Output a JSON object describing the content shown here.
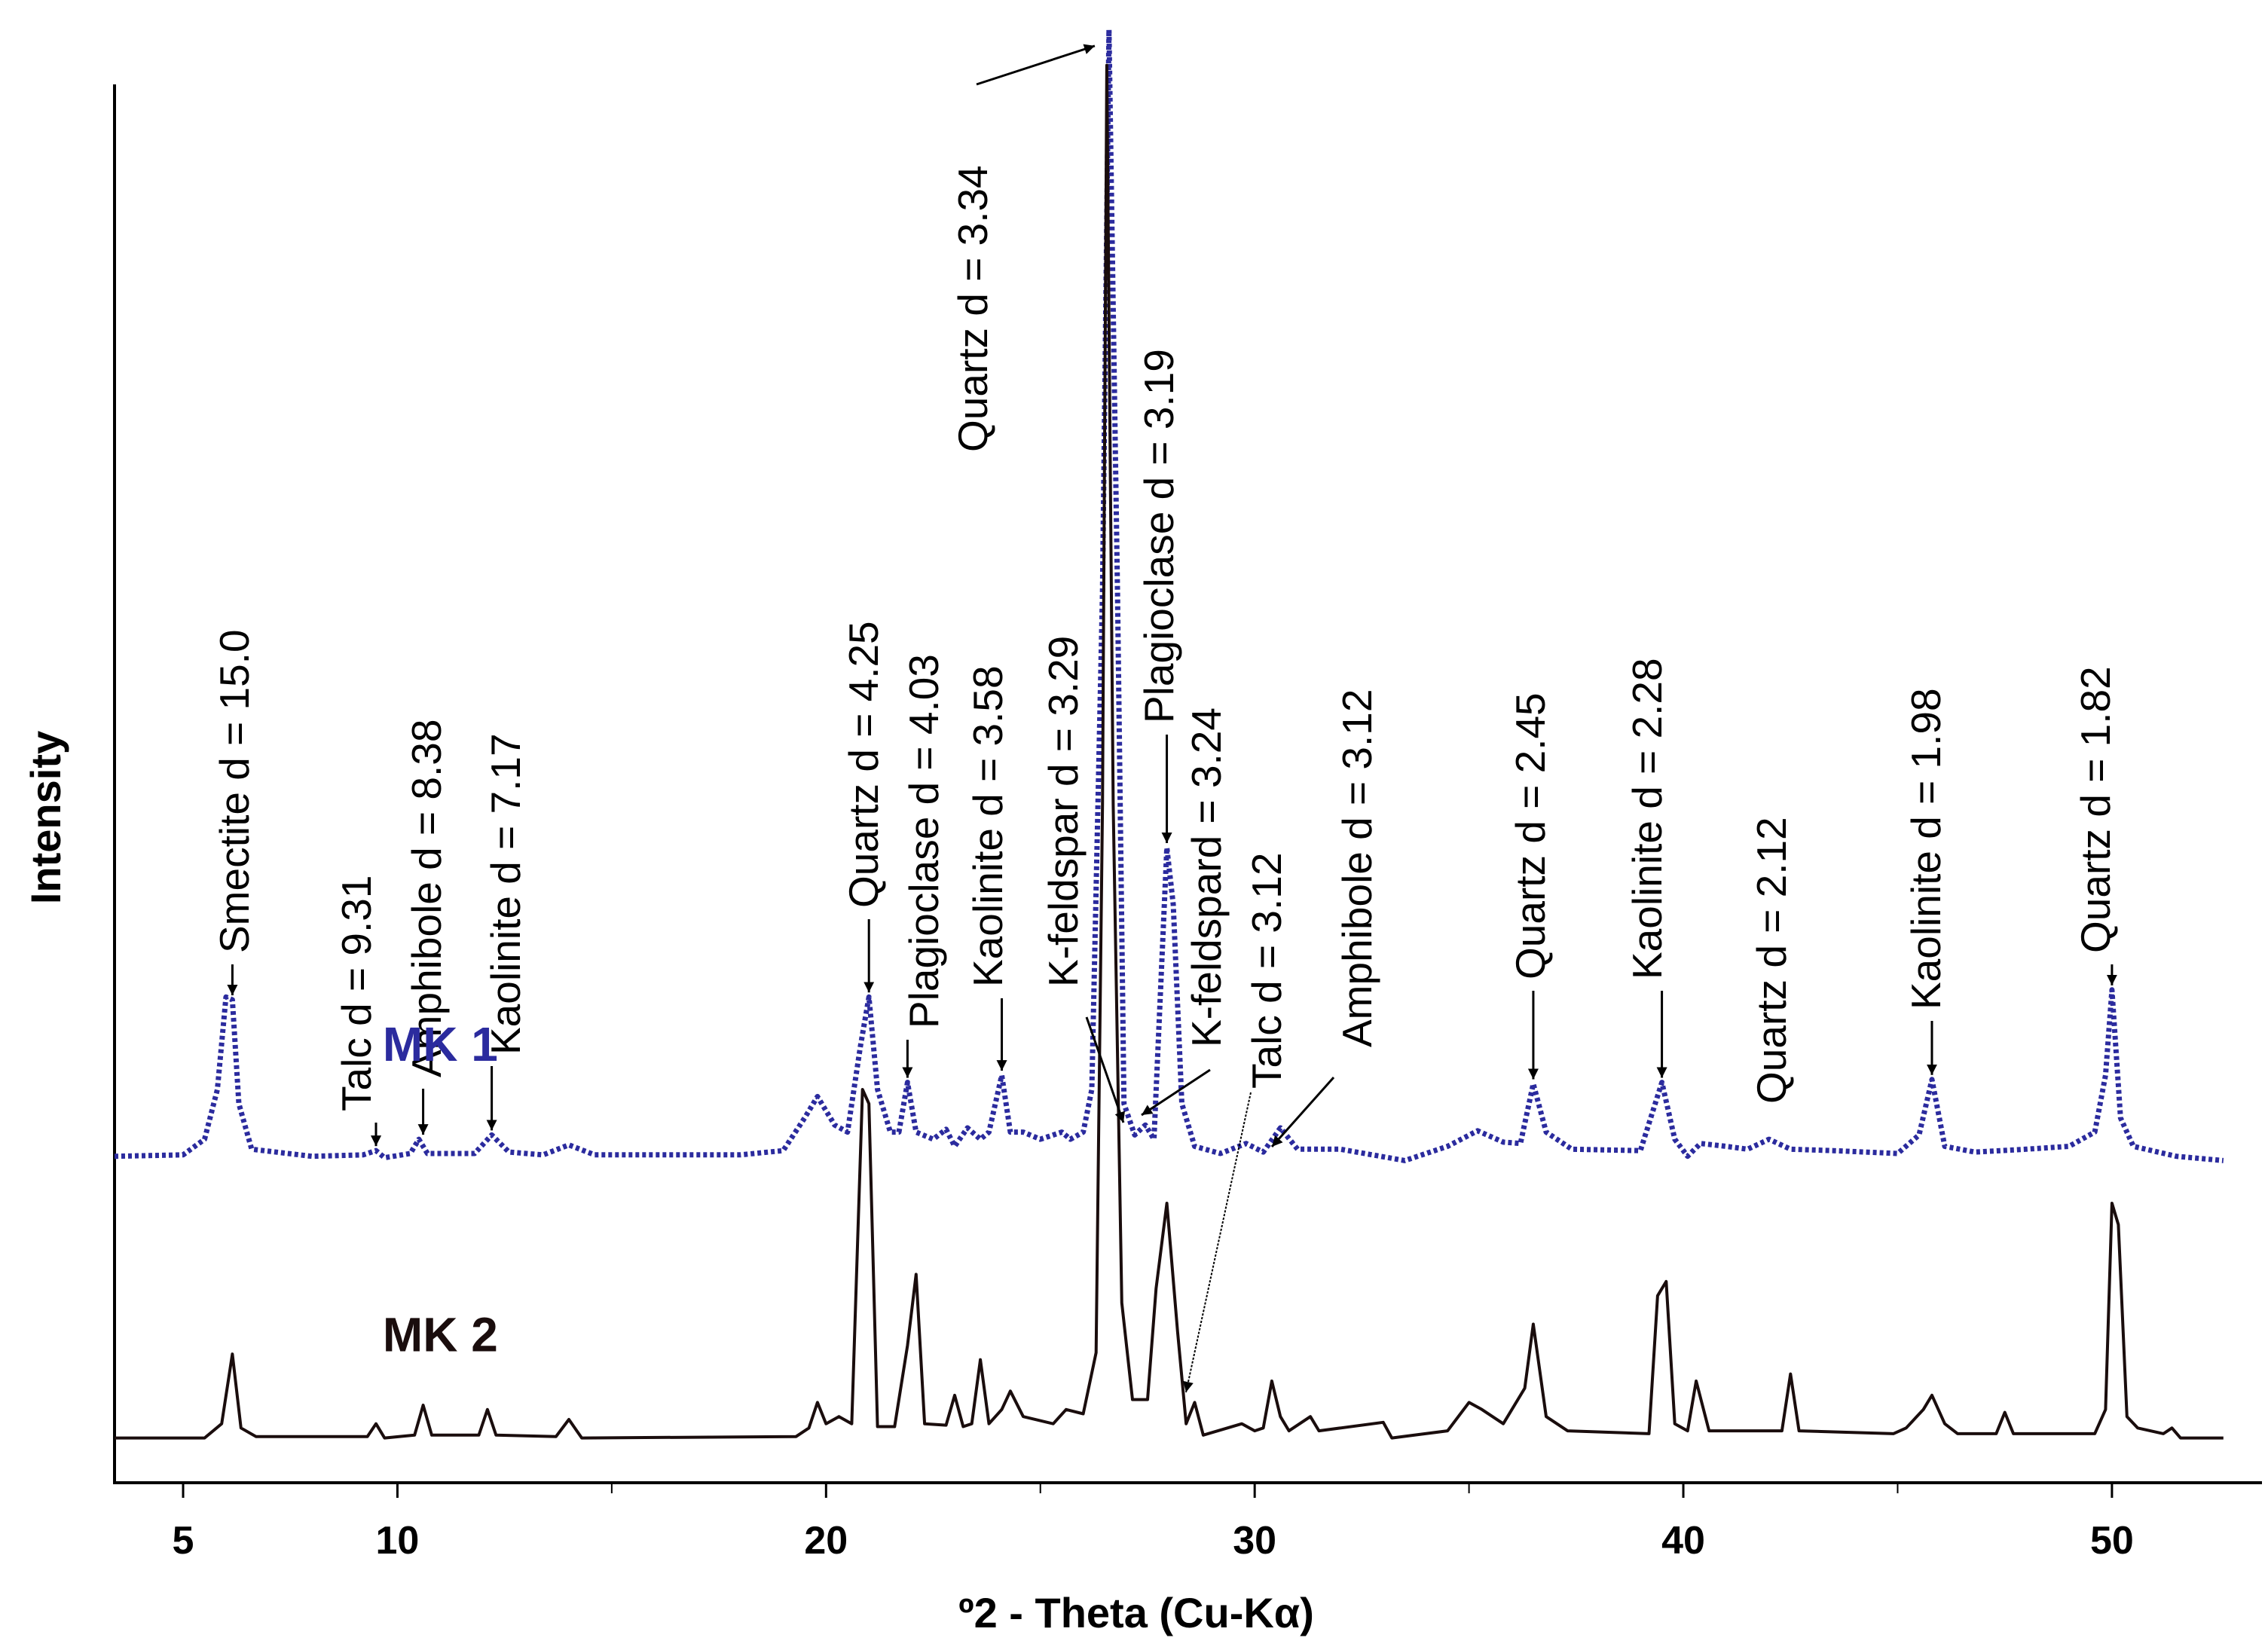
{
  "chart_data": {
    "type": "line",
    "title": "",
    "xlabel": "º2 - Theta (Cu-Kα)",
    "ylabel": "Intensity",
    "xlim": [
      3.4,
      53.5
    ],
    "ylim": [
      0,
      100
    ],
    "xticks": [
      5,
      10,
      20,
      30,
      40,
      50
    ],
    "minor_xticks": [
      15,
      25,
      35,
      45
    ],
    "grid": false,
    "series": [
      {
        "name": "MK 1",
        "color": "#2b2b9e",
        "style": "dotted",
        "points": [
          [
            3.4,
            20.3
          ],
          [
            5.0,
            20.4
          ],
          [
            5.5,
            21.5
          ],
          [
            5.8,
            25.0
          ],
          [
            6.0,
            31.5
          ],
          [
            6.15,
            31.3
          ],
          [
            6.3,
            24.0
          ],
          [
            6.6,
            20.8
          ],
          [
            8.0,
            20.3
          ],
          [
            9.2,
            20.4
          ],
          [
            9.5,
            20.7
          ],
          [
            9.7,
            20.2
          ],
          [
            10.3,
            20.5
          ],
          [
            10.5,
            21.5
          ],
          [
            10.7,
            20.5
          ],
          [
            11.8,
            20.5
          ],
          [
            12.2,
            21.8
          ],
          [
            12.6,
            20.6
          ],
          [
            13.4,
            20.4
          ],
          [
            14.0,
            21.1
          ],
          [
            14.6,
            20.4
          ],
          [
            18.0,
            20.4
          ],
          [
            19.0,
            20.7
          ],
          [
            19.5,
            23.0
          ],
          [
            19.8,
            24.5
          ],
          [
            20.2,
            22.5
          ],
          [
            20.5,
            22.0
          ],
          [
            20.8,
            28.0
          ],
          [
            21.0,
            31.5
          ],
          [
            21.2,
            25.0
          ],
          [
            21.5,
            22.0
          ],
          [
            21.7,
            22.0
          ],
          [
            21.9,
            25.5
          ],
          [
            22.1,
            22.0
          ],
          [
            22.5,
            21.5
          ],
          [
            22.8,
            22.2
          ],
          [
            23.0,
            21.0
          ],
          [
            23.3,
            22.3
          ],
          [
            23.6,
            21.5
          ],
          [
            23.8,
            22.0
          ],
          [
            24.1,
            26.0
          ],
          [
            24.3,
            22.0
          ],
          [
            24.6,
            22.0
          ],
          [
            25.0,
            21.5
          ],
          [
            25.5,
            22.0
          ],
          [
            25.7,
            21.5
          ],
          [
            26.0,
            22.0
          ],
          [
            26.2,
            25.0
          ],
          [
            26.45,
            60.0
          ],
          [
            26.6,
            99.5
          ],
          [
            26.8,
            60.0
          ],
          [
            26.95,
            24.0
          ],
          [
            27.2,
            21.8
          ],
          [
            27.45,
            22.5
          ],
          [
            27.65,
            21.5
          ],
          [
            27.95,
            42.0
          ],
          [
            28.1,
            38.0
          ],
          [
            28.3,
            24.0
          ],
          [
            28.6,
            21.0
          ],
          [
            29.2,
            20.5
          ],
          [
            29.8,
            21.2
          ],
          [
            30.2,
            20.6
          ],
          [
            30.6,
            22.3
          ],
          [
            31.0,
            20.8
          ],
          [
            32.0,
            20.8
          ],
          [
            33.5,
            20.0
          ],
          [
            34.5,
            21.0
          ],
          [
            35.2,
            22.1
          ],
          [
            35.8,
            21.3
          ],
          [
            36.2,
            21.2
          ],
          [
            36.5,
            25.4
          ],
          [
            36.8,
            22.0
          ],
          [
            37.4,
            20.8
          ],
          [
            39.0,
            20.7
          ],
          [
            39.5,
            25.5
          ],
          [
            39.8,
            21.5
          ],
          [
            40.1,
            20.3
          ],
          [
            40.4,
            21.2
          ],
          [
            41.0,
            21.0
          ],
          [
            41.5,
            20.8
          ],
          [
            42.0,
            21.5
          ],
          [
            42.5,
            20.8
          ],
          [
            43.5,
            20.7
          ],
          [
            45.0,
            20.5
          ],
          [
            45.5,
            21.8
          ],
          [
            45.8,
            25.7
          ],
          [
            46.1,
            21.0
          ],
          [
            46.8,
            20.6
          ],
          [
            48.0,
            20.8
          ],
          [
            49.0,
            21.0
          ],
          [
            49.6,
            22.0
          ],
          [
            49.85,
            26.0
          ],
          [
            50.0,
            32.0
          ],
          [
            50.2,
            23.0
          ],
          [
            50.5,
            21.0
          ],
          [
            51.5,
            20.3
          ],
          [
            52.6,
            20.0
          ]
        ]
      },
      {
        "name": "MK 2",
        "color": "#1a0d0d",
        "style": "solid",
        "points": [
          [
            3.4,
            0.5
          ],
          [
            5.5,
            0.5
          ],
          [
            5.9,
            1.5
          ],
          [
            6.15,
            6.4
          ],
          [
            6.35,
            1.2
          ],
          [
            6.7,
            0.6
          ],
          [
            9.3,
            0.6
          ],
          [
            9.5,
            1.5
          ],
          [
            9.7,
            0.5
          ],
          [
            10.4,
            0.7
          ],
          [
            10.6,
            2.8
          ],
          [
            10.8,
            0.7
          ],
          [
            11.9,
            0.7
          ],
          [
            12.1,
            2.5
          ],
          [
            12.3,
            0.7
          ],
          [
            13.7,
            0.6
          ],
          [
            14.0,
            1.8
          ],
          [
            14.3,
            0.5
          ],
          [
            19.3,
            0.6
          ],
          [
            19.6,
            1.2
          ],
          [
            19.8,
            3.0
          ],
          [
            20.0,
            1.5
          ],
          [
            20.3,
            2.0
          ],
          [
            20.6,
            1.5
          ],
          [
            20.85,
            25.0
          ],
          [
            21.0,
            24.0
          ],
          [
            21.2,
            1.3
          ],
          [
            21.6,
            1.3
          ],
          [
            21.9,
            7.0
          ],
          [
            22.1,
            12.0
          ],
          [
            22.3,
            1.5
          ],
          [
            22.8,
            1.4
          ],
          [
            23.0,
            3.5
          ],
          [
            23.2,
            1.3
          ],
          [
            23.4,
            1.5
          ],
          [
            23.6,
            6.0
          ],
          [
            23.8,
            1.5
          ],
          [
            24.1,
            2.5
          ],
          [
            24.3,
            3.8
          ],
          [
            24.6,
            2.0
          ],
          [
            25.3,
            1.5
          ],
          [
            25.6,
            2.5
          ],
          [
            26.0,
            2.2
          ],
          [
            26.3,
            6.5
          ],
          [
            26.45,
            45.0
          ],
          [
            26.55,
            97.0
          ],
          [
            26.7,
            45.0
          ],
          [
            26.9,
            10.0
          ],
          [
            27.15,
            3.2
          ],
          [
            27.5,
            3.2
          ],
          [
            27.7,
            11.0
          ],
          [
            27.95,
            17.0
          ],
          [
            28.2,
            8.0
          ],
          [
            28.4,
            1.5
          ],
          [
            28.6,
            3.0
          ],
          [
            28.8,
            0.7
          ],
          [
            29.7,
            1.5
          ],
          [
            30.0,
            1.0
          ],
          [
            30.2,
            1.2
          ],
          [
            30.4,
            4.5
          ],
          [
            30.6,
            2.0
          ],
          [
            30.8,
            1.0
          ],
          [
            31.3,
            2.0
          ],
          [
            31.5,
            1.0
          ],
          [
            33.0,
            1.6
          ],
          [
            33.2,
            0.5
          ],
          [
            34.5,
            1.0
          ],
          [
            35.0,
            3.0
          ],
          [
            35.3,
            2.5
          ],
          [
            35.8,
            1.5
          ],
          [
            36.3,
            4.0
          ],
          [
            36.5,
            8.5
          ],
          [
            36.8,
            2.0
          ],
          [
            37.3,
            1.0
          ],
          [
            39.2,
            0.8
          ],
          [
            39.4,
            10.5
          ],
          [
            39.6,
            11.5
          ],
          [
            39.8,
            1.5
          ],
          [
            40.1,
            1.0
          ],
          [
            40.3,
            4.5
          ],
          [
            40.6,
            1.0
          ],
          [
            42.3,
            1.0
          ],
          [
            42.5,
            5.0
          ],
          [
            42.7,
            1.0
          ],
          [
            44.9,
            0.8
          ],
          [
            45.2,
            1.2
          ],
          [
            45.6,
            2.5
          ],
          [
            45.8,
            3.5
          ],
          [
            46.1,
            1.5
          ],
          [
            46.4,
            0.8
          ],
          [
            47.3,
            0.8
          ],
          [
            47.5,
            2.3
          ],
          [
            47.7,
            0.8
          ],
          [
            49.6,
            0.8
          ],
          [
            49.85,
            2.5
          ],
          [
            50.0,
            17.0
          ],
          [
            50.15,
            15.5
          ],
          [
            50.35,
            2.0
          ],
          [
            50.6,
            1.2
          ],
          [
            51.2,
            0.8
          ],
          [
            51.4,
            1.2
          ],
          [
            51.6,
            0.5
          ],
          [
            52.6,
            0.5
          ]
        ]
      }
    ],
    "series_labels": [
      {
        "text": "MK 1",
        "x": 11.0,
        "y": 27.0,
        "color": "#2b2b9e"
      },
      {
        "text": "MK 2",
        "x": 11.0,
        "y": 6.6,
        "color": "#1a0d0d"
      }
    ],
    "annotations": [
      {
        "text": "Smectite d = 15.0",
        "x": 6.15,
        "y": 31.3,
        "anchor_y": 44.0
      },
      {
        "text": "Talc d = 9.31",
        "x": 9.5,
        "y": 20.7,
        "anchor_y": 28.5
      },
      {
        "text": "Amphibole d = 8.38",
        "x": 10.6,
        "y": 21.5,
        "anchor_y": 30.0
      },
      {
        "text": "Kaolinite d = 7.17",
        "x": 12.2,
        "y": 21.8,
        "anchor_y": 29.0
      },
      {
        "text": "Quartz d = 4.25",
        "x": 21.0,
        "y": 31.5,
        "anchor_y": 43.0
      },
      {
        "text": "Plagioclase d = 4.03",
        "x": 21.9,
        "y": 25.5,
        "anchor_y": 30.0
      },
      {
        "text": "Kaolinite d = 3.58",
        "x": 24.1,
        "y": 26.0,
        "anchor_y": 32.0
      },
      {
        "text": "K-feldspar d = 3.29",
        "x": 27.0,
        "y": 24.5,
        "anchor_y": 32.0
      },
      {
        "text": "Quartz d = 3.34",
        "x": 26.55,
        "y": 99.0
      },
      {
        "text": "Plagioclase d = 3.19",
        "x": 27.95,
        "y": 42.0,
        "anchor_y": 48.0
      },
      {
        "text": "K-feldspard = 3.24",
        "x": 27.45,
        "y": 23.5
      },
      {
        "text": "Talc d = 3.12",
        "x": 28.6,
        "y": 3.0
      },
      {
        "text": "Amphibole d = 3.12",
        "x": 30.6,
        "y": 22.5
      },
      {
        "text": "Quartz d = 2.45",
        "x": 36.5,
        "y": 25.4,
        "anchor_y": 32.0
      },
      {
        "text": "Kaolinite d = 2.28",
        "x": 39.5,
        "y": 25.5,
        "anchor_y": 32.0
      },
      {
        "text": "Quartz d = 2.12",
        "x": 42.5,
        "y": 24.0
      },
      {
        "text": "Kaolinite d = 1.98",
        "x": 45.8,
        "y": 25.7,
        "anchor_y": 31.0
      },
      {
        "text": "Quartz d = 1.82",
        "x": 50.0,
        "y": 32.0,
        "anchor_y": 35.0
      }
    ]
  }
}
